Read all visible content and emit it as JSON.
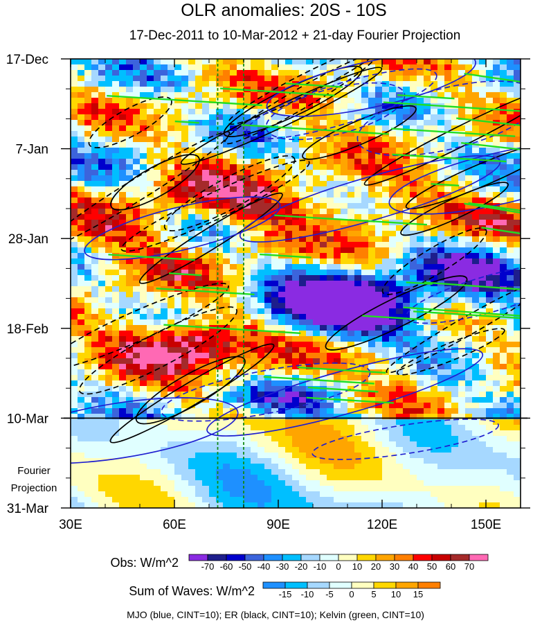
{
  "chart_data": {
    "type": "heatmap",
    "title": "OLR anomalies: 20S - 10S",
    "subtitle": "17-Dec-2011 to 10-Mar-2012 + 21-day Fourier Projection",
    "x_axis": {
      "unit": "degrees E longitude",
      "range": [
        30,
        160
      ],
      "tick_values": [
        30,
        60,
        90,
        120,
        150
      ],
      "tick_labels": [
        "30E",
        "60E",
        "90E",
        "120E",
        "150E"
      ]
    },
    "y_axis": {
      "unit": "days since 17-Dec-2011 (downward)",
      "range": [
        0,
        105
      ],
      "tick_values": [
        0,
        21,
        42,
        63,
        84,
        105
      ],
      "tick_labels": [
        "17-Dec",
        "7-Jan",
        "28-Jan",
        "18-Feb",
        "10-Mar",
        "31-Mar"
      ]
    },
    "observation_end_day": 84,
    "projection_label": [
      "Fourier",
      "Projection"
    ],
    "reference_longitudes": [
      72.5,
      80
    ],
    "obs_colorbar": {
      "label": "Obs: W/m^2",
      "levels": [
        -70,
        -60,
        -50,
        -40,
        -30,
        -20,
        -10,
        0,
        10,
        20,
        30,
        40,
        50,
        60,
        70
      ],
      "colors": [
        "#8a2be2",
        "#1e1e8c",
        "#0000cd",
        "#3c64dc",
        "#1e90ff",
        "#00bfff",
        "#a6d8ff",
        "#e0ffff",
        "#ffffc0",
        "#ffd700",
        "#ffa500",
        "#ff7f00",
        "#ff0000",
        "#c80000",
        "#a52a2a",
        "#ff69b4"
      ]
    },
    "waves_colorbar": {
      "label": "Sum of Waves: W/m^2",
      "levels": [
        -15,
        -10,
        -5,
        0,
        5,
        10,
        15
      ],
      "colors": [
        "#1e90ff",
        "#00bfff",
        "#a6d8ff",
        "#e0ffff",
        "#ffffc0",
        "#ffd700",
        "#ffa500",
        "#ff7f00"
      ]
    },
    "contour_legend": "MJO (blue, CINT=10); ER (black, CINT=10); Kelvin (green, CINT=10)",
    "contour_colors": {
      "MJO": "#1f1fd0",
      "ER": "#000000",
      "Kelvin": "#22dd22"
    }
  }
}
